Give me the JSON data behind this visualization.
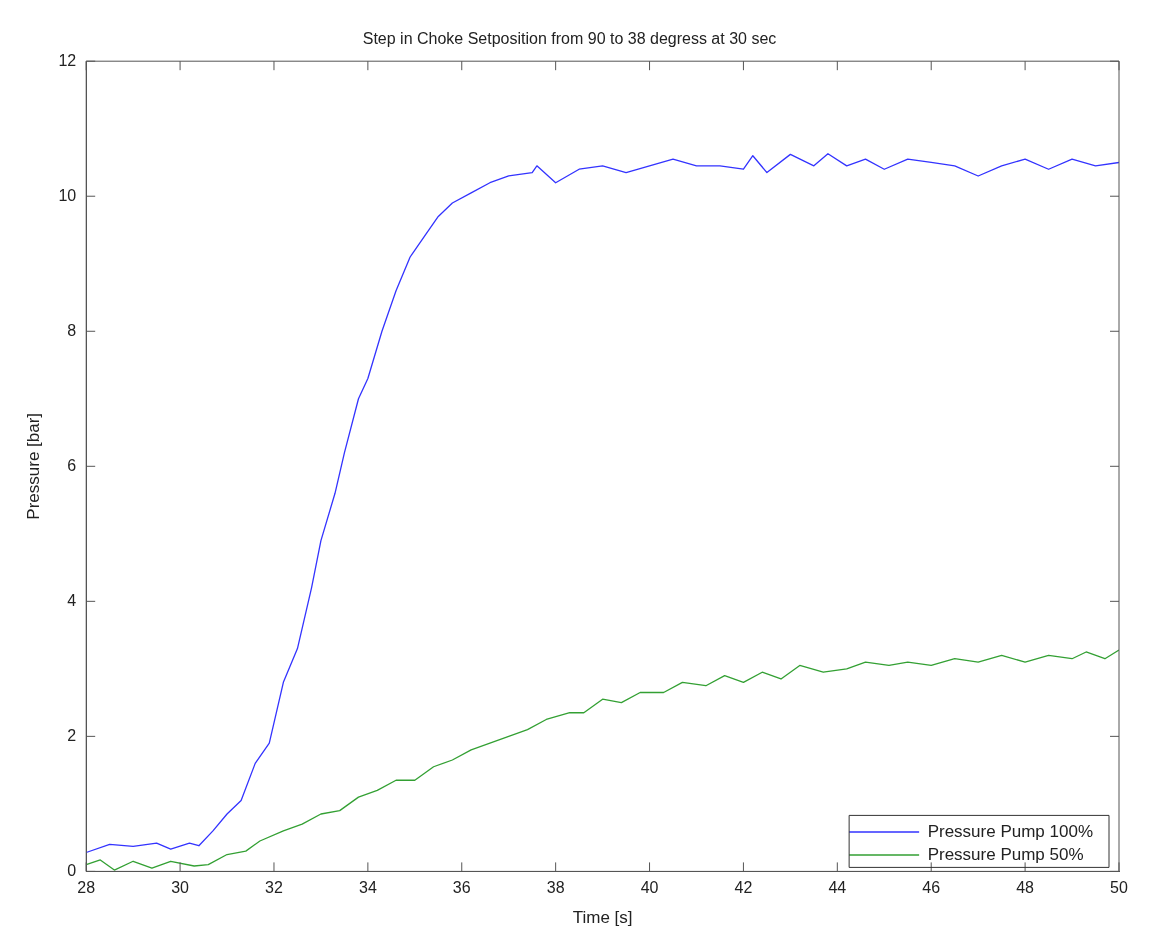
{
  "chart_data": {
    "type": "line",
    "title": "Step in Choke Setposition from 90 to 38 degress at 30 sec",
    "xlabel": "Time [s]",
    "ylabel": "Pressure [bar]",
    "xlim": [
      28,
      50
    ],
    "xticks": [
      28,
      30,
      32,
      34,
      36,
      38,
      40,
      42,
      44,
      46,
      48,
      50
    ],
    "ylim": [
      0,
      12
    ],
    "yticks": [
      0,
      2,
      4,
      6,
      8,
      10,
      12
    ],
    "grid": false,
    "legend": "bottom right",
    "marker": "none",
    "line_style": "solid",
    "series": [
      {
        "name": "Pressure Pump 100%",
        "color": "#3333ff",
        "x": [
          28,
          28.5,
          29,
          29.5,
          29.8,
          30.2,
          30.4,
          30.7,
          31,
          31.3,
          31.6,
          31.9,
          32.2,
          32.5,
          32.8,
          33,
          33.3,
          33.5,
          33.8,
          34,
          34.3,
          34.6,
          34.9,
          35.2,
          35.5,
          35.8,
          36.2,
          36.6,
          37,
          37.5,
          37.6,
          38,
          38.5,
          39,
          39.5,
          40,
          40.5,
          41,
          41.5,
          42,
          42.2,
          42.5,
          43,
          43.5,
          43.8,
          44.2,
          44.6,
          45,
          45.5,
          46,
          46.5,
          47,
          47.5,
          48,
          48.5,
          49,
          49.5,
          50
        ],
        "values": [
          0.28,
          0.4,
          0.37,
          0.42,
          0.33,
          0.42,
          0.38,
          0.6,
          0.85,
          1.05,
          1.6,
          1.9,
          2.8,
          3.3,
          4.2,
          4.9,
          5.6,
          6.2,
          7.0,
          7.3,
          8.0,
          8.6,
          9.1,
          9.4,
          9.7,
          9.9,
          10.05,
          10.2,
          10.3,
          10.35,
          10.45,
          10.2,
          10.4,
          10.45,
          10.35,
          10.45,
          10.55,
          10.45,
          10.45,
          10.4,
          10.6,
          10.35,
          10.62,
          10.45,
          10.63,
          10.45,
          10.55,
          10.4,
          10.55,
          10.5,
          10.45,
          10.3,
          10.45,
          10.55,
          10.4,
          10.55,
          10.45,
          10.5
        ]
      },
      {
        "name": "Pressure Pump 50%",
        "color": "#33a033",
        "x": [
          28,
          28.3,
          28.6,
          29,
          29.4,
          29.8,
          30.3,
          30.6,
          31,
          31.4,
          31.7,
          32.2,
          32.6,
          33,
          33.4,
          33.8,
          34.2,
          34.6,
          35,
          35.4,
          35.8,
          36.2,
          36.6,
          37,
          37.4,
          37.8,
          38.3,
          38.6,
          39,
          39.4,
          39.8,
          40.3,
          40.7,
          41.2,
          41.6,
          42,
          42.4,
          42.8,
          43.2,
          43.7,
          44.2,
          44.6,
          45.1,
          45.5,
          46,
          46.5,
          47,
          47.5,
          48,
          48.5,
          49,
          49.3,
          49.7,
          50
        ],
        "values": [
          0.1,
          0.17,
          0.02,
          0.15,
          0.05,
          0.15,
          0.08,
          0.1,
          0.25,
          0.3,
          0.45,
          0.6,
          0.7,
          0.85,
          0.9,
          1.1,
          1.2,
          1.35,
          1.35,
          1.55,
          1.65,
          1.8,
          1.9,
          2.0,
          2.1,
          2.25,
          2.35,
          2.35,
          2.55,
          2.5,
          2.65,
          2.65,
          2.8,
          2.75,
          2.9,
          2.8,
          2.95,
          2.85,
          3.05,
          2.95,
          3.0,
          3.1,
          3.05,
          3.1,
          3.05,
          3.15,
          3.1,
          3.2,
          3.1,
          3.2,
          3.15,
          3.25,
          3.15,
          3.28
        ]
      }
    ]
  }
}
